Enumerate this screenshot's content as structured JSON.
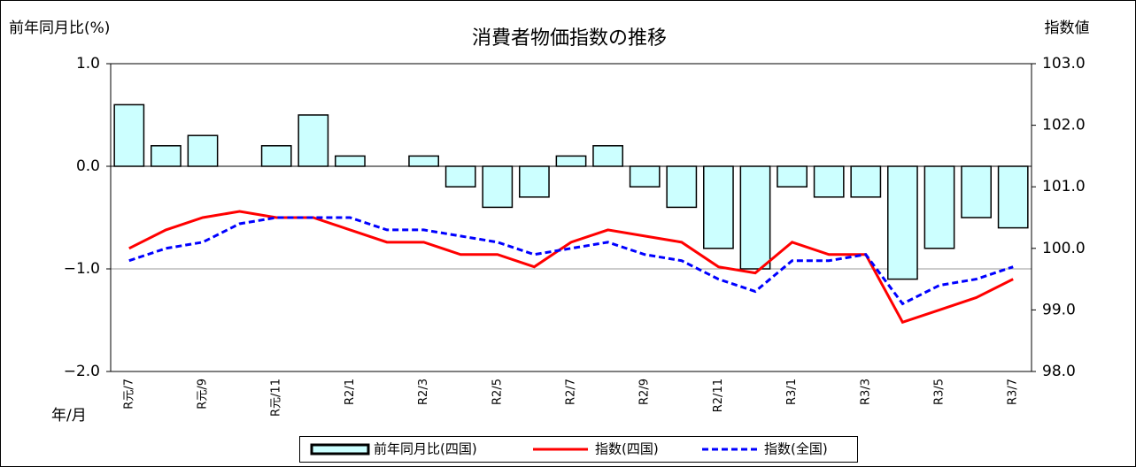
{
  "chart_data": {
    "type": "combo",
    "title": "消費者物価指数の推移",
    "y_label": "前年同月比(%)",
    "y2_label": "指数値",
    "x_label": "年/月",
    "categories": [
      "R元/7",
      null,
      "R元/9",
      null,
      "R元/11",
      null,
      "R2/1",
      null,
      "R2/3",
      null,
      "R2/5",
      null,
      "R2/7",
      null,
      "R2/9",
      null,
      "R2/11",
      null,
      "R3/1",
      null,
      "R3/3",
      null,
      "R3/5",
      null,
      "R3/7"
    ],
    "ylim": [
      -2,
      1
    ],
    "yticks": [
      {
        "value": 1,
        "label": "1.0"
      },
      {
        "value": 0,
        "label": "0.0"
      },
      {
        "value": -1,
        "label": "−1.0"
      },
      {
        "value": -2,
        "label": "−2.0"
      }
    ],
    "y2lim": [
      98,
      103
    ],
    "y2ticks": [
      {
        "value": 103,
        "label": "103.0"
      },
      {
        "value": 102,
        "label": "102.0"
      },
      {
        "value": 101,
        "label": "101.0"
      },
      {
        "value": 100,
        "label": "100.0"
      },
      {
        "value": 99,
        "label": "99.0"
      },
      {
        "value": 98,
        "label": "98.0"
      }
    ],
    "grid": true,
    "legend": "bottom",
    "series": [
      {
        "name": "前年同月比(四国)",
        "type": "bar",
        "axis": "y",
        "color": "#ccffff",
        "values": [
          0.6,
          0.2,
          0.3,
          0.0,
          0.2,
          0.5,
          0.1,
          0.0,
          0.1,
          -0.2,
          -0.4,
          -0.3,
          0.1,
          0.2,
          -0.2,
          -0.4,
          -0.8,
          -1.0,
          -0.2,
          -0.3,
          -0.3,
          -1.1,
          -0.8,
          -0.5,
          -0.6
        ]
      },
      {
        "name": "指数(四国)",
        "type": "line",
        "axis": "y2",
        "color": "#ff0000",
        "line_style": "solid",
        "values": [
          100.0,
          100.3,
          100.5,
          100.6,
          100.5,
          100.5,
          100.3,
          100.1,
          100.1,
          99.9,
          99.9,
          99.7,
          100.1,
          100.3,
          100.2,
          100.1,
          99.7,
          99.6,
          100.1,
          99.9,
          99.9,
          98.8,
          99.0,
          99.2,
          99.5
        ]
      },
      {
        "name": "指数(全国)",
        "type": "line",
        "axis": "y2",
        "color": "#0000ff",
        "line_style": "dashed",
        "values": [
          99.8,
          100.0,
          100.1,
          100.4,
          100.5,
          100.5,
          100.5,
          100.3,
          100.3,
          100.2,
          100.1,
          99.9,
          100.0,
          100.1,
          99.9,
          99.8,
          99.5,
          99.3,
          99.8,
          99.8,
          99.9,
          99.1,
          99.4,
          99.5,
          99.7
        ]
      }
    ]
  }
}
